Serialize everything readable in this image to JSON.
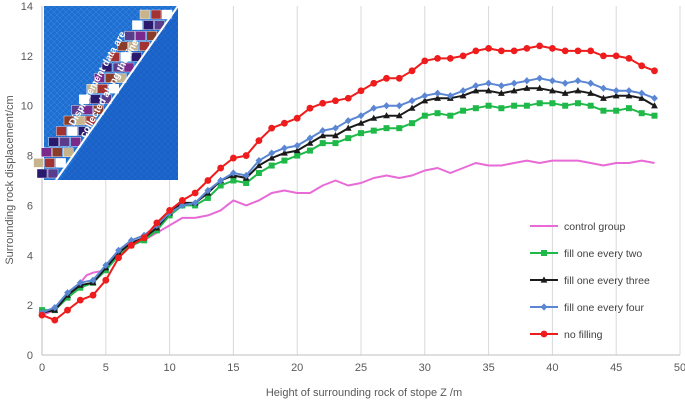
{
  "chart_data": {
    "type": "line",
    "xlabel": "Height of surrounding rock of stope Z  /m",
    "ylabel": "Surrounding rock displacement/cm",
    "xlim": [
      0,
      50
    ],
    "ylim": [
      0,
      14
    ],
    "xticks": [
      "0",
      "5",
      "10",
      "15",
      "20",
      "25",
      "30",
      "35",
      "40",
      "45",
      "50"
    ],
    "yticks": [
      "0",
      "2",
      "4",
      "6",
      "8",
      "10",
      "12",
      "14"
    ],
    "grid": "vertical",
    "legend_position": "bottom-right",
    "inset_caption_line1": "Displacement data are",
    "inset_caption_line2": "collected along the line",
    "series": [
      {
        "name": "control group",
        "color": "#e86ad6",
        "marker": "none",
        "x": [
          0,
          1,
          2,
          3,
          3.5,
          4,
          5,
          6,
          7,
          8,
          9,
          10,
          11,
          12,
          13,
          14,
          15,
          16,
          17,
          18,
          19,
          20,
          21,
          22,
          23,
          24,
          25,
          26,
          27,
          28,
          29,
          30,
          31,
          32,
          33,
          34,
          35,
          36,
          37,
          38,
          39,
          40,
          41,
          42,
          43,
          44,
          45,
          46,
          47,
          48
        ],
        "y": [
          1.6,
          1.8,
          2.3,
          2.9,
          3.2,
          3.3,
          3.4,
          4.0,
          4.4,
          4.6,
          4.9,
          5.2,
          5.5,
          5.5,
          5.6,
          5.8,
          6.2,
          6.0,
          6.2,
          6.5,
          6.6,
          6.5,
          6.5,
          6.8,
          7.0,
          6.8,
          6.9,
          7.1,
          7.2,
          7.1,
          7.2,
          7.4,
          7.5,
          7.3,
          7.5,
          7.7,
          7.6,
          7.6,
          7.7,
          7.8,
          7.7,
          7.8,
          7.8,
          7.8,
          7.7,
          7.6,
          7.7,
          7.7,
          7.8,
          7.7
        ]
      },
      {
        "name": "fill one every two",
        "color": "#1fb94a",
        "marker": "square",
        "x": [
          0,
          1,
          2,
          3,
          4,
          5,
          6,
          7,
          8,
          9,
          10,
          11,
          12,
          13,
          14,
          15,
          16,
          17,
          18,
          19,
          20,
          21,
          22,
          23,
          24,
          25,
          26,
          27,
          28,
          29,
          30,
          31,
          32,
          33,
          34,
          35,
          36,
          37,
          38,
          39,
          40,
          41,
          42,
          43,
          44,
          45,
          46,
          47,
          48
        ],
        "y": [
          1.8,
          1.8,
          2.3,
          2.7,
          2.9,
          3.4,
          4.0,
          4.4,
          4.6,
          5.0,
          5.6,
          6.0,
          6.0,
          6.3,
          6.8,
          7.0,
          6.9,
          7.3,
          7.6,
          7.8,
          8.0,
          8.2,
          8.5,
          8.5,
          8.7,
          8.9,
          9.0,
          9.1,
          9.1,
          9.3,
          9.6,
          9.7,
          9.6,
          9.8,
          9.9,
          10.0,
          9.9,
          10.0,
          10.0,
          10.1,
          10.1,
          10.0,
          10.1,
          10.0,
          9.8,
          9.8,
          9.9,
          9.7,
          9.6
        ]
      },
      {
        "name": "fill one every three",
        "color": "#1a1a1a",
        "marker": "triangle",
        "x": [
          0,
          1,
          2,
          3,
          4,
          5,
          6,
          7,
          8,
          9,
          10,
          11,
          12,
          13,
          14,
          15,
          16,
          17,
          18,
          19,
          20,
          21,
          22,
          23,
          24,
          25,
          26,
          27,
          28,
          29,
          30,
          31,
          32,
          33,
          34,
          35,
          36,
          37,
          38,
          39,
          40,
          41,
          42,
          43,
          44,
          45,
          46,
          47,
          48
        ],
        "y": [
          1.7,
          1.8,
          2.4,
          2.8,
          2.9,
          3.5,
          4.1,
          4.5,
          4.7,
          5.1,
          5.7,
          6.1,
          6.1,
          6.5,
          7.0,
          7.2,
          7.1,
          7.6,
          7.9,
          8.1,
          8.2,
          8.5,
          8.8,
          8.8,
          9.1,
          9.3,
          9.5,
          9.6,
          9.6,
          9.9,
          10.2,
          10.3,
          10.3,
          10.4,
          10.6,
          10.6,
          10.5,
          10.6,
          10.7,
          10.7,
          10.6,
          10.5,
          10.6,
          10.5,
          10.3,
          10.4,
          10.4,
          10.3,
          10.0
        ]
      },
      {
        "name": "fill one every four",
        "color": "#5b86d4",
        "marker": "diamond",
        "x": [
          0,
          1,
          2,
          3,
          4,
          5,
          6,
          7,
          8,
          9,
          10,
          11,
          12,
          13,
          14,
          15,
          16,
          17,
          18,
          19,
          20,
          21,
          22,
          23,
          24,
          25,
          26,
          27,
          28,
          29,
          30,
          31,
          32,
          33,
          34,
          35,
          36,
          37,
          38,
          39,
          40,
          41,
          42,
          43,
          44,
          45,
          46,
          47,
          48
        ],
        "y": [
          1.7,
          1.9,
          2.5,
          2.9,
          3.0,
          3.6,
          4.2,
          4.6,
          4.8,
          5.2,
          5.7,
          6.0,
          6.1,
          6.6,
          7.0,
          7.3,
          7.2,
          7.8,
          8.1,
          8.3,
          8.4,
          8.7,
          9.0,
          9.1,
          9.4,
          9.6,
          9.9,
          10.0,
          10.0,
          10.2,
          10.4,
          10.5,
          10.4,
          10.6,
          10.8,
          10.9,
          10.8,
          10.9,
          11.0,
          11.1,
          11.0,
          10.9,
          11.0,
          10.9,
          10.7,
          10.6,
          10.6,
          10.5,
          10.3
        ]
      },
      {
        "name": "no filling",
        "color": "#ee1c1c",
        "marker": "circle",
        "x": [
          0,
          1,
          2,
          3,
          4,
          5,
          6,
          7,
          8,
          9,
          10,
          11,
          12,
          13,
          14,
          15,
          16,
          17,
          18,
          19,
          20,
          21,
          22,
          23,
          24,
          25,
          26,
          27,
          28,
          29,
          30,
          31,
          32,
          33,
          34,
          35,
          36,
          37,
          38,
          39,
          40,
          41,
          42,
          43,
          44,
          45,
          46,
          47,
          48
        ],
        "y": [
          1.6,
          1.4,
          1.8,
          2.2,
          2.4,
          3.0,
          3.9,
          4.4,
          4.7,
          5.3,
          5.8,
          6.2,
          6.5,
          7.0,
          7.5,
          7.9,
          8.0,
          8.6,
          9.1,
          9.3,
          9.5,
          9.9,
          10.1,
          10.2,
          10.3,
          10.6,
          10.9,
          11.1,
          11.1,
          11.4,
          11.8,
          11.9,
          11.9,
          12.0,
          12.2,
          12.3,
          12.2,
          12.2,
          12.3,
          12.4,
          12.3,
          12.2,
          12.2,
          12.2,
          12.0,
          12.0,
          11.9,
          11.6,
          11.4
        ]
      }
    ]
  }
}
